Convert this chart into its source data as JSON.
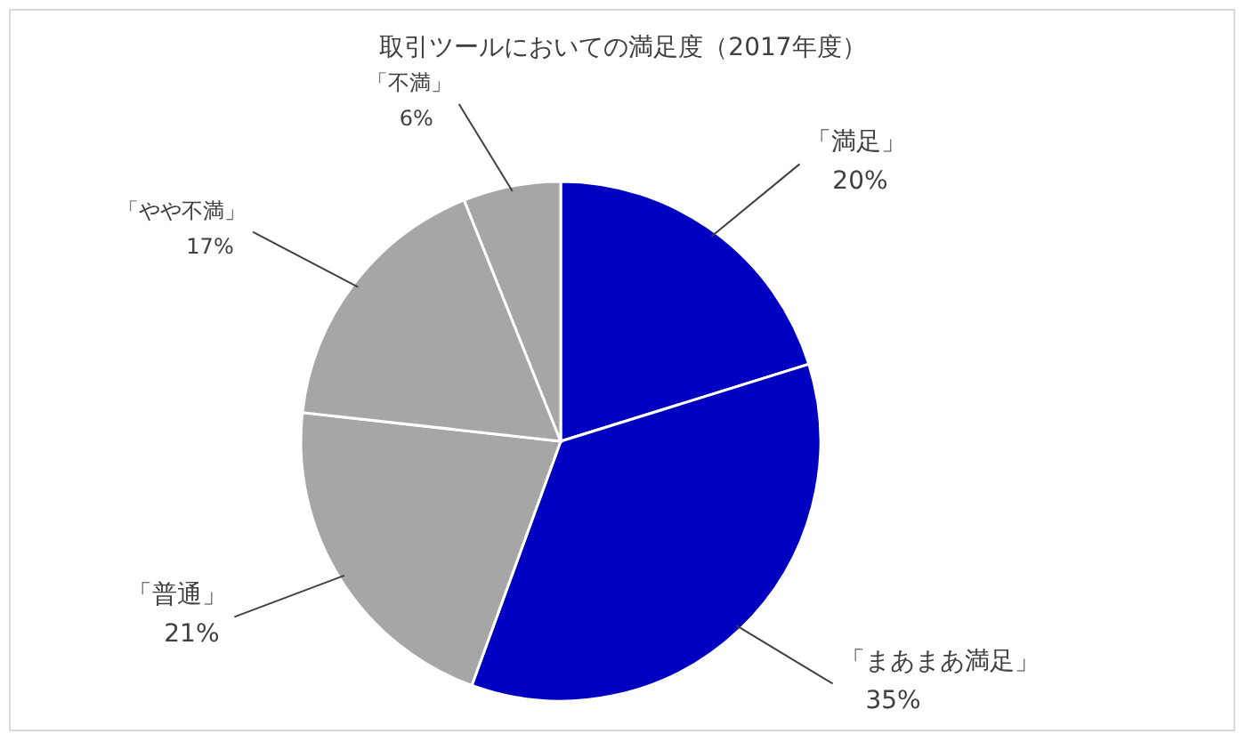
{
  "chart_data": {
    "type": "pie",
    "title": "取引ツールにおいての満足度（2017年度）",
    "categories": [
      "「満足」",
      "「まあまあ満足」",
      "「普通」",
      "「やや不満」",
      "「不満」"
    ],
    "values": [
      20,
      35,
      21,
      17,
      6
    ],
    "colors": [
      "#0000c0",
      "#0000c0",
      "#a6a6a6",
      "#a6a6a6",
      "#a6a6a6"
    ],
    "value_labels": [
      "20%",
      "35%",
      "21%",
      "17%",
      "6%"
    ]
  }
}
